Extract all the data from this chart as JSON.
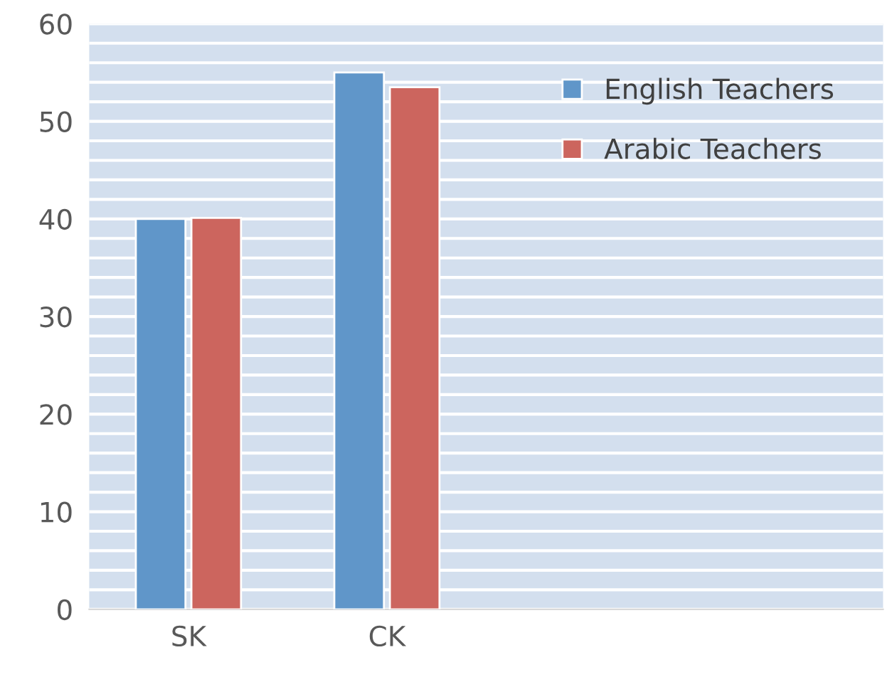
{
  "chart_data": {
    "type": "bar",
    "categories": [
      "SK",
      "CK",
      null,
      null
    ],
    "series": [
      {
        "name": "English Teachers",
        "color": "#6096c9",
        "values": [
          40,
          55,
          null,
          null
        ]
      },
      {
        "name": "Arabic Teachers",
        "color": "#cc655e",
        "values": [
          40.1,
          53.5,
          null,
          null
        ]
      }
    ],
    "ylim": [
      0,
      60
    ],
    "yticks": [
      0,
      {
        "value": 2,
        "label": null
      },
      {
        "value": 4,
        "label": null
      },
      {
        "value": 6,
        "label": null
      },
      {
        "value": 8,
        "label": null
      },
      10,
      {
        "value": 12,
        "label": null
      },
      {
        "value": 14,
        "label": null
      },
      {
        "value": 16,
        "label": null
      },
      {
        "value": 18,
        "label": null
      },
      20,
      {
        "value": 22,
        "label": null
      },
      {
        "value": 24,
        "label": null
      },
      {
        "value": 26,
        "label": null
      },
      {
        "value": 28,
        "label": null
      },
      30,
      {
        "value": 32,
        "label": null
      },
      {
        "value": 34,
        "label": null
      },
      {
        "value": 36,
        "label": null
      },
      {
        "value": 38,
        "label": null
      },
      40,
      {
        "value": 42,
        "label": null
      },
      {
        "value": 44,
        "label": null
      },
      {
        "value": 46,
        "label": null
      },
      {
        "value": 48,
        "label": null
      },
      50,
      {
        "value": 52,
        "label": null
      },
      {
        "value": 54,
        "label": null
      },
      {
        "value": 56,
        "label": null
      },
      {
        "value": 58,
        "label": null
      },
      60
    ],
    "grid": "y",
    "legend": "top right"
  }
}
